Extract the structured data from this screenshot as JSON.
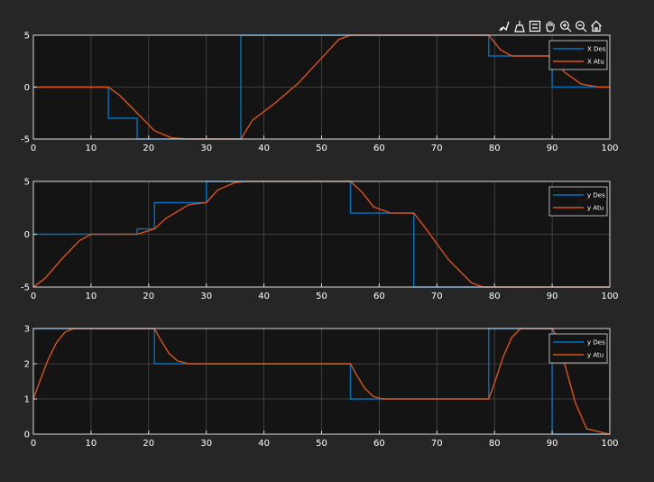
{
  "toolbar": {
    "icons": [
      "brush-icon",
      "data-tip-icon",
      "legend-toggle-icon",
      "pan-icon",
      "zoom-in-icon",
      "zoom-out-icon",
      "home-icon"
    ]
  },
  "colors": {
    "figure_bg": "#262626",
    "axes_bg": "#141414",
    "grid": "#4a4a4a",
    "frame": "#d9d9d9",
    "series_des": "#0072bd",
    "series_att": "#d95319"
  },
  "chart_data": [
    {
      "type": "line",
      "xlim": [
        0,
        100
      ],
      "ylim": [
        -5,
        5
      ],
      "xticks": [
        0,
        10,
        20,
        30,
        40,
        50,
        60,
        70,
        80,
        90,
        100
      ],
      "yticks": [
        -5,
        0,
        5
      ],
      "grid": true,
      "legend": "top-right",
      "series": [
        {
          "name": "X Des",
          "x": [
            0,
            13,
            13,
            18,
            18,
            36,
            36,
            79,
            79,
            90,
            90,
            100
          ],
          "y": [
            0,
            0,
            -3,
            -3,
            -5,
            -5,
            5,
            5,
            3,
            3,
            0,
            0
          ]
        },
        {
          "name": "X Atu",
          "x": [
            0,
            13,
            15,
            18,
            21,
            24,
            27,
            36,
            38,
            42,
            46,
            50,
            53,
            55,
            79,
            81,
            83,
            90,
            92,
            95,
            98,
            100
          ],
          "y": [
            0,
            0,
            -0.8,
            -2.5,
            -4.2,
            -4.9,
            -5,
            -5,
            -3.2,
            -1.5,
            0.4,
            2.8,
            4.6,
            5,
            5,
            3.6,
            3,
            3,
            1.5,
            0.3,
            0,
            0
          ]
        }
      ]
    },
    {
      "type": "line",
      "xlim": [
        0,
        100
      ],
      "ylim": [
        -5,
        5
      ],
      "xticks": [
        0,
        10,
        20,
        30,
        40,
        50,
        60,
        70,
        80,
        90,
        100
      ],
      "yticks": [
        -5,
        0,
        5
      ],
      "grid": true,
      "legend": "top-right",
      "series": [
        {
          "name": "y Des",
          "x": [
            0,
            18,
            18,
            21,
            21,
            30,
            30,
            55,
            55,
            66,
            66,
            100
          ],
          "y": [
            0,
            0,
            0.5,
            0.5,
            3,
            3,
            5,
            5,
            2,
            2,
            -5,
            -5
          ]
        },
        {
          "name": "y Atu",
          "x": [
            0,
            2,
            5,
            8,
            10,
            18,
            21,
            23,
            27,
            30,
            32,
            35,
            37,
            55,
            57,
            59,
            62,
            66,
            68,
            72,
            76,
            78,
            100
          ],
          "y": [
            -5,
            -4.2,
            -2.3,
            -0.6,
            0,
            0,
            0.5,
            1.5,
            2.8,
            3,
            4.2,
            4.9,
            5,
            5,
            4,
            2.6,
            2,
            2,
            0.6,
            -2.4,
            -4.6,
            -5,
            -5
          ]
        }
      ]
    },
    {
      "type": "line",
      "xlim": [
        0,
        100
      ],
      "ylim": [
        0,
        3
      ],
      "xticks": [
        0,
        10,
        20,
        30,
        40,
        50,
        60,
        70,
        80,
        90,
        100
      ],
      "yticks": [
        0,
        1,
        2,
        3
      ],
      "grid": true,
      "legend": "top-right",
      "series": [
        {
          "name": "y Des",
          "x": [
            0,
            21,
            21,
            55,
            55,
            79,
            79,
            90,
            90,
            100
          ],
          "y": [
            3,
            3,
            2,
            2,
            1,
            1,
            3,
            3,
            0,
            0
          ]
        },
        {
          "name": "y Atu",
          "x": [
            0,
            1,
            2.5,
            4,
            5.5,
            7,
            21,
            22,
            23.5,
            25,
            27,
            55,
            56,
            57.5,
            59,
            60.5,
            79,
            80,
            81.5,
            83,
            84.5,
            90,
            91,
            92.5,
            94,
            96,
            100
          ],
          "y": [
            1,
            1.45,
            2.1,
            2.6,
            2.9,
            3,
            3,
            2.7,
            2.3,
            2.08,
            2,
            2,
            1.7,
            1.3,
            1.07,
            1,
            1,
            1.45,
            2.2,
            2.75,
            3,
            3,
            2.7,
            1.8,
            0.9,
            0.15,
            0
          ]
        }
      ]
    }
  ]
}
